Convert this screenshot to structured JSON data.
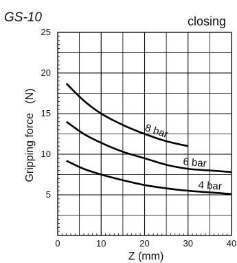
{
  "model_label": "GS-10",
  "mode_label": "closing",
  "chart_data": {
    "type": "line",
    "xlabel": "Z (mm)",
    "ylabel": "Gripping force   (N)",
    "xlim": [
      0,
      40
    ],
    "ylim": [
      0,
      25
    ],
    "x_ticks": [
      0,
      10,
      20,
      30,
      40
    ],
    "y_ticks": [
      5,
      10,
      15,
      20,
      25
    ],
    "grid": true,
    "series": [
      {
        "name": "8 bar",
        "x": [
          2,
          6,
          10,
          15,
          20,
          25,
          30
        ],
        "y": [
          18.7,
          16.6,
          15.0,
          13.6,
          12.5,
          11.6,
          11.0
        ]
      },
      {
        "name": "6 bar",
        "x": [
          2,
          6,
          10,
          15,
          20,
          25,
          30,
          35,
          40
        ],
        "y": [
          14.0,
          12.5,
          11.4,
          10.3,
          9.5,
          8.7,
          8.2,
          8.0,
          7.8
        ]
      },
      {
        "name": "4 bar",
        "x": [
          2,
          6,
          10,
          15,
          20,
          25,
          30,
          35,
          40
        ],
        "y": [
          9.2,
          8.2,
          7.5,
          6.8,
          6.2,
          5.8,
          5.5,
          5.3,
          5.1
        ]
      }
    ]
  }
}
